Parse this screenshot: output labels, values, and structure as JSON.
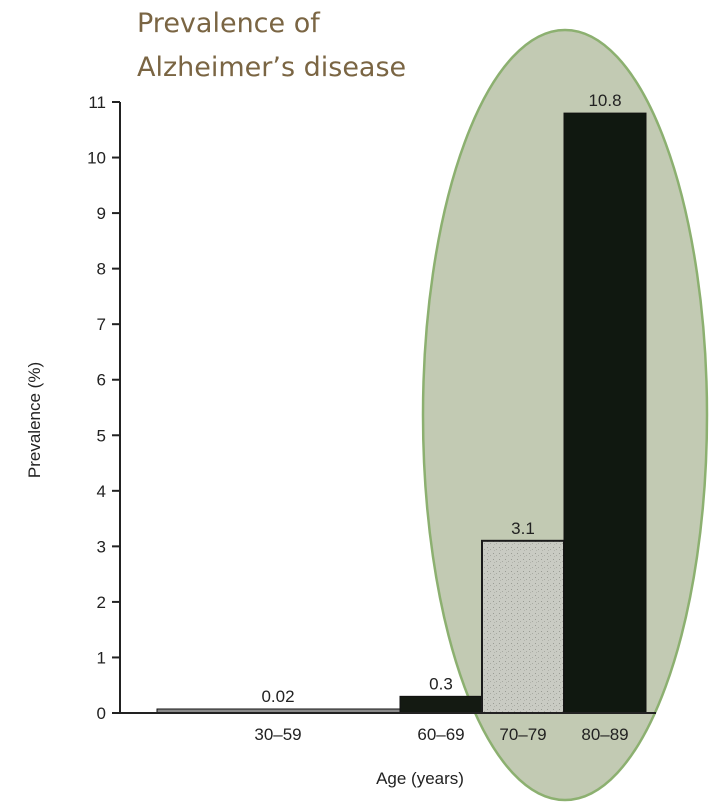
{
  "chart_data": {
    "type": "bar",
    "title": "Prevalence of Alzheimer’s disease",
    "title_lines": [
      "Prevalence of",
      "Alzheimer’s disease"
    ],
    "xlabel": "Age (years)",
    "ylabel": "Prevalence (%)",
    "ylim": [
      0,
      11
    ],
    "yticks": [
      "0",
      "1",
      "2",
      "3",
      "4",
      "5",
      "6",
      "7",
      "8",
      "9",
      "10",
      "11"
    ],
    "categories": [
      "30–59",
      "60–69",
      "70–79",
      "80–89"
    ],
    "values": [
      0.02,
      0.3,
      3.1,
      10.8
    ],
    "data_labels": [
      "0.02",
      "0.3",
      "3.1",
      "10.8"
    ],
    "bar_fills": [
      "#8a8a8a",
      "#141a12",
      "#c9cbc3",
      "#101810"
    ],
    "highlight_color": "#b9c3a8",
    "highlight_border": "#8cb070",
    "grid": false,
    "legend": "none"
  }
}
